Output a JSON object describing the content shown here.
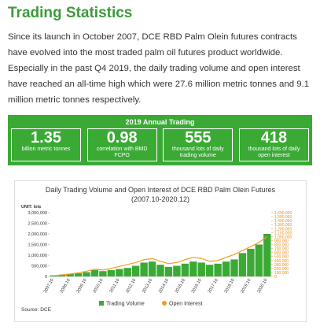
{
  "header": {
    "title": "Trading Statistics"
  },
  "intro": "Since its launch in October 2007, DCE RBD Palm Olein futures contracts have evolved into the most traded palm oil futures product worldwide. Especially in the past Q4 2019, the daily trading volume and open interest have reached an all-time high which were 27.6 million metric tonnes and 9.1 million metric tonnes respectively.",
  "stats": {
    "heading": "2019 Annual Trading",
    "items": [
      {
        "value": "1.35",
        "label": "billion metric tonnes"
      },
      {
        "value": "0.98",
        "label": "correlation with BMD FCPO"
      },
      {
        "value": "555",
        "label": "thousand lots of daily trading volume"
      },
      {
        "value": "418",
        "label": "thousand lots of daily open interest"
      }
    ]
  },
  "chart_data": {
    "type": "bar-line",
    "title": "Daily Trading Volume and Open Interest of DCE RBD Palm Olein Futures",
    "subtitle": "(2007.10-2020.12)",
    "unit": "UNIT: lots",
    "source": "Source: DCE",
    "categories": [
      "2007.10",
      null,
      "2008.10",
      null,
      "2009.10",
      null,
      "2010.10",
      null,
      "2011.10",
      null,
      "2012.10",
      null,
      "2013.10",
      null,
      "2014.10",
      null,
      "2015.10",
      null,
      "2016.10",
      null,
      "2017.10",
      null,
      "2018.10",
      null,
      "2019.10",
      null,
      "2020.10"
    ],
    "series": [
      {
        "name": "Trading Volume",
        "color": "#3aaa35",
        "axis": "y",
        "values": [
          50000,
          80000,
          120000,
          150000,
          200000,
          300000,
          250000,
          300000,
          350000,
          400000,
          500000,
          650000,
          700000,
          550000,
          450000,
          500000,
          600000,
          700000,
          650000,
          550000,
          600000,
          700000,
          800000,
          1100000,
          1300000,
          1500000,
          2000000
        ]
      },
      {
        "name": "Open Interest",
        "color": "#f39c1f",
        "axis": "y2",
        "values": [
          20000,
          40000,
          60000,
          90000,
          130000,
          180000,
          160000,
          200000,
          250000,
          300000,
          350000,
          420000,
          450000,
          380000,
          320000,
          350000,
          420000,
          480000,
          450000,
          380000,
          400000,
          480000,
          550000,
          650000,
          750000,
          850000,
          1000000
        ]
      }
    ],
    "ylim": [
      0,
      3000000
    ],
    "yticks": [
      0,
      {
        "value": 500000,
        "label": "500,000"
      },
      {
        "value": 1000000,
        "label": "1,000,000"
      },
      {
        "value": 1500000,
        "label": "1,500,000"
      },
      {
        "value": 2000000,
        "label": "2,000,000"
      },
      {
        "value": 2500000,
        "label": "2,500,000"
      },
      {
        "value": 3000000,
        "label": "3,000,000"
      }
    ],
    "y2lim": [
      0,
      1600000
    ],
    "y2ticks": [
      0,
      {
        "value": 100000,
        "label": "100,000"
      },
      {
        "value": 200000,
        "label": "200,000"
      },
      {
        "value": 300000,
        "label": "300,000"
      },
      {
        "value": 400000,
        "label": "400,000"
      },
      {
        "value": 500000,
        "label": "500,000"
      },
      {
        "value": 600000,
        "label": "600,000"
      },
      {
        "value": 700000,
        "label": "700,000"
      },
      {
        "value": 800000,
        "label": "800,000"
      },
      {
        "value": 900000,
        "label": "900,000"
      },
      {
        "value": 1000000,
        "label": "1,000,000"
      },
      {
        "value": 1100000,
        "label": "1,100,000"
      },
      {
        "value": 1200000,
        "label": "1,200,000"
      },
      {
        "value": 1300000,
        "label": "1,300,000"
      },
      {
        "value": 1400000,
        "label": "1,400,000"
      },
      {
        "value": 1500000,
        "label": "1,500,000"
      },
      {
        "value": 1600000,
        "label": "1,600,000"
      }
    ]
  }
}
